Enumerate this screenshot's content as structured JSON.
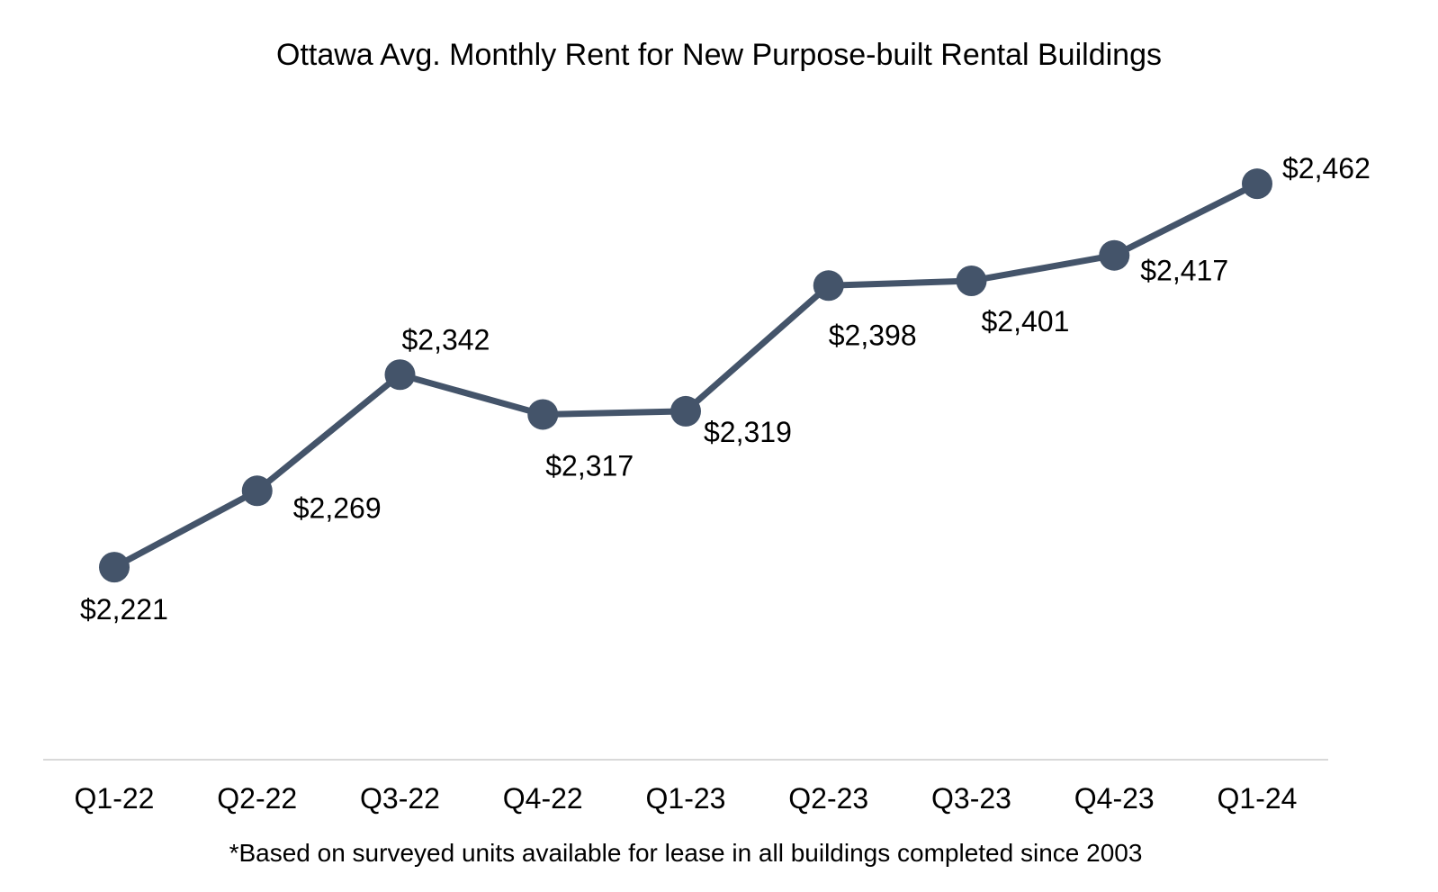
{
  "chart_data": {
    "type": "line",
    "title": "Ottawa Avg. Monthly Rent for New Purpose-built Rental Buildings",
    "footnote": "*Based on surveyed units available for lease in all buildings completed since 2003",
    "xlabel": "",
    "ylabel": "",
    "categories": [
      "Q1-22",
      "Q2-22",
      "Q3-22",
      "Q4-22",
      "Q1-23",
      "Q2-23",
      "Q3-23",
      "Q4-23",
      "Q1-24"
    ],
    "series": [
      {
        "name": "Avg. Monthly Rent",
        "values": [
          2221,
          2269,
          2342,
          2317,
          2319,
          2398,
          2401,
          2417,
          2462
        ],
        "labels": [
          "$2,221",
          "$2,269",
          "$2,342",
          "$2,317",
          "$2,319",
          "$2,398",
          "$2,401",
          "$2,417",
          "$2,462"
        ],
        "color": "#44546a"
      }
    ],
    "ylim": [
      2100,
      2500
    ],
    "grid": false,
    "legend": "none"
  }
}
